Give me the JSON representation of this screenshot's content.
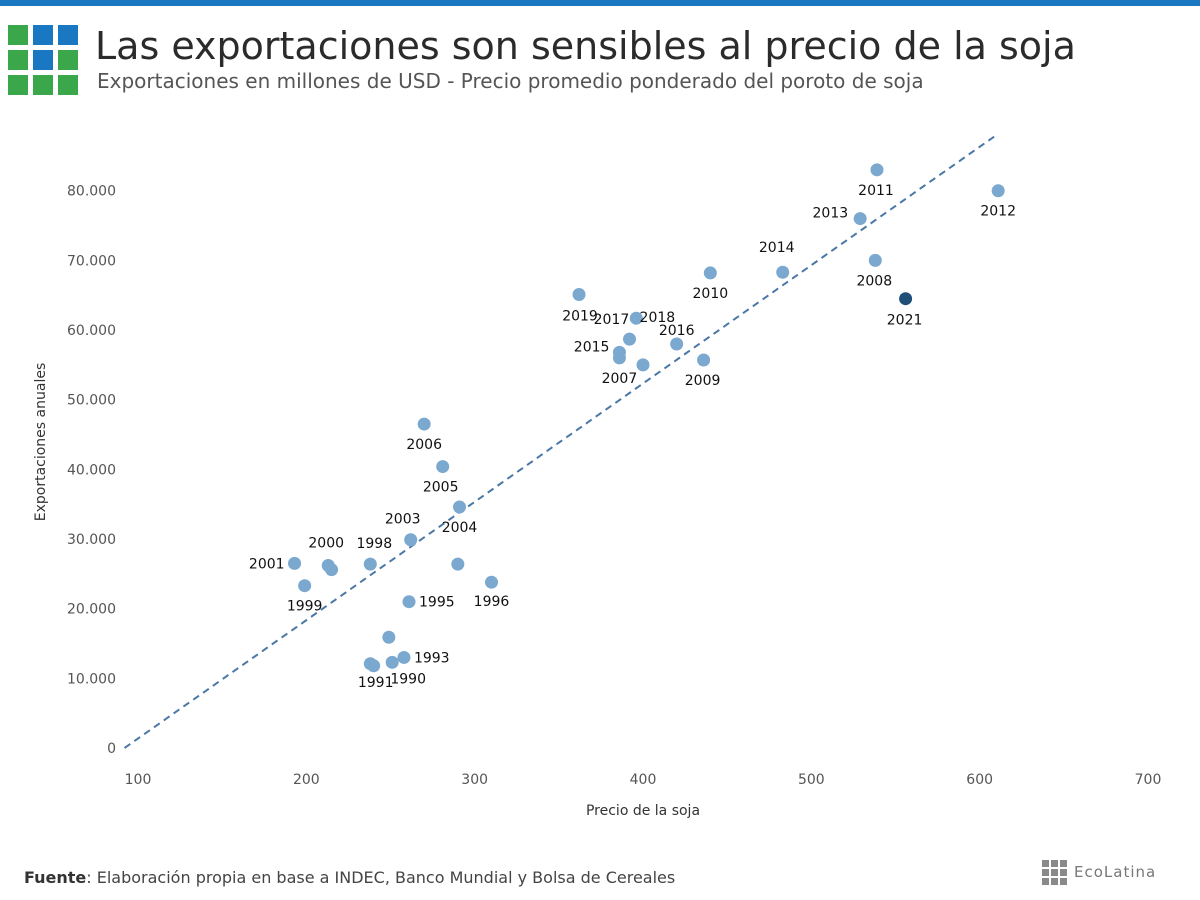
{
  "header": {
    "title": "Las exportaciones son sensibles al precio de la soja",
    "subtitle": "Exportaciones en millones de USD - Precio promedio ponderado del poroto de soja"
  },
  "colors": {
    "top_bar": "#1a78c2",
    "logo_blue": "#1a78c2",
    "logo_green": "#3aa84a",
    "point": "#7aa8cf",
    "point_highlight": "#1f4e79",
    "trendline": "#4a78a6"
  },
  "chart_data": {
    "type": "scatter",
    "title": "",
    "xlabel": "Precio de la soja",
    "ylabel": "Exportaciones anuales",
    "xlim": [
      100,
      700
    ],
    "ylim": [
      0,
      88000
    ],
    "x_ticks": [
      "100",
      "200",
      "300",
      "400",
      "500",
      "600",
      "700"
    ],
    "y_ticks": [
      "0",
      "10.000",
      "20.000",
      "30.000",
      "40.000",
      "50.000",
      "60.000",
      "70.000",
      "80.000"
    ],
    "grid": false,
    "highlight_label": "2021",
    "trendline": {
      "style": "dashed",
      "x": [
        92,
        610
      ],
      "y": [
        0,
        88000
      ]
    },
    "points": [
      {
        "label": "1990",
        "x": 251,
        "y": 12300
      },
      {
        "label": "1991",
        "x": 240,
        "y": 11800
      },
      {
        "label": "",
        "x": 238,
        "y": 12100
      },
      {
        "label": "",
        "x": 249,
        "y": 15900
      },
      {
        "label": "1993",
        "x": 258,
        "y": 13000
      },
      {
        "label": "1995",
        "x": 261,
        "y": 21000
      },
      {
        "label": "1996",
        "x": 310,
        "y": 23800
      },
      {
        "label": "",
        "x": 290,
        "y": 26400
      },
      {
        "label": "1998",
        "x": 238,
        "y": 26400
      },
      {
        "label": "1999",
        "x": 199,
        "y": 23300
      },
      {
        "label": "2000",
        "x": 213,
        "y": 26200
      },
      {
        "label": "",
        "x": 215,
        "y": 25600
      },
      {
        "label": "2001",
        "x": 193,
        "y": 26500
      },
      {
        "label": "2003",
        "x": 262,
        "y": 29900
      },
      {
        "label": "2004",
        "x": 291,
        "y": 34600
      },
      {
        "label": "2005",
        "x": 281,
        "y": 40400
      },
      {
        "label": "2006",
        "x": 270,
        "y": 46500
      },
      {
        "label": "2007",
        "x": 386,
        "y": 56000
      },
      {
        "label": "2015",
        "x": 386,
        "y": 56800
      },
      {
        "label": "2008",
        "x": 538,
        "y": 70000
      },
      {
        "label": "2009",
        "x": 436,
        "y": 55700
      },
      {
        "label": "2010",
        "x": 440,
        "y": 68200
      },
      {
        "label": "2011",
        "x": 539,
        "y": 83000
      },
      {
        "label": "2012",
        "x": 611,
        "y": 80000
      },
      {
        "label": "2013",
        "x": 529,
        "y": 76000
      },
      {
        "label": "2014",
        "x": 483,
        "y": 68300
      },
      {
        "label": "2016",
        "x": 420,
        "y": 58000
      },
      {
        "label": "2017",
        "x": 396,
        "y": 61700
      },
      {
        "label": "2018",
        "x": 392,
        "y": 58700
      },
      {
        "label": "",
        "x": 400,
        "y": 55000
      },
      {
        "label": "2019",
        "x": 362,
        "y": 65100
      },
      {
        "label": "2021",
        "x": 556,
        "y": 64500
      }
    ]
  },
  "footer": {
    "source_label": "Fuente",
    "source_text": ": Elaboración propia en base a INDEC, Banco Mundial y Bolsa de Cereales",
    "brand": "EcoLatina"
  }
}
